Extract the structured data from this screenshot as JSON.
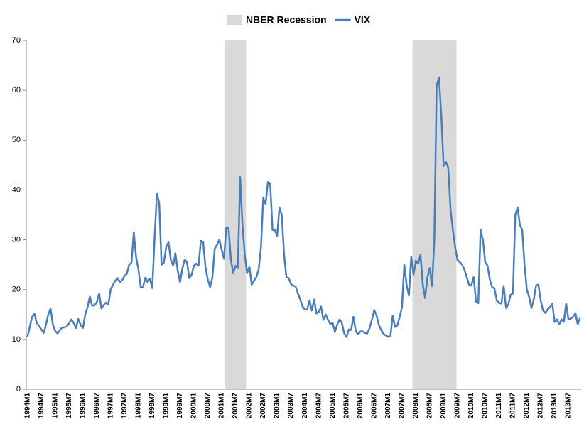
{
  "chart_data": {
    "type": "line",
    "categories": [
      "1994M1",
      null,
      null,
      null,
      null,
      null,
      "1994M7",
      null,
      null,
      null,
      null,
      null,
      "1995M1",
      null,
      null,
      null,
      null,
      null,
      "1995M7",
      null,
      null,
      null,
      null,
      null,
      "1996M1",
      null,
      null,
      null,
      null,
      null,
      "1996M7",
      null,
      null,
      null,
      null,
      null,
      "1997M1",
      null,
      null,
      null,
      null,
      null,
      "1997M7",
      null,
      null,
      null,
      null,
      null,
      "1998M1",
      null,
      null,
      null,
      null,
      null,
      "1998M7",
      null,
      null,
      null,
      null,
      null,
      "1999M1",
      null,
      null,
      null,
      null,
      null,
      "1999M7",
      null,
      null,
      null,
      null,
      null,
      "2000M1",
      null,
      null,
      null,
      null,
      null,
      "2000M7",
      null,
      null,
      null,
      null,
      null,
      "2001M1",
      null,
      null,
      null,
      null,
      null,
      "2001M7",
      null,
      null,
      null,
      null,
      null,
      "2002M1",
      null,
      null,
      null,
      null,
      null,
      "2002M7",
      null,
      null,
      null,
      null,
      null,
      "2003M1",
      null,
      null,
      null,
      null,
      null,
      "2003M7",
      null,
      null,
      null,
      null,
      null,
      "2004M1",
      null,
      null,
      null,
      null,
      null,
      "2004M7",
      null,
      null,
      null,
      null,
      null,
      "2005M1",
      null,
      null,
      null,
      null,
      null,
      "2005M7",
      null,
      null,
      null,
      null,
      null,
      "2006M1",
      null,
      null,
      null,
      null,
      null,
      "2006M7",
      null,
      null,
      null,
      null,
      null,
      "2007M1",
      null,
      null,
      null,
      null,
      null,
      "2007M7",
      null,
      null,
      null,
      null,
      null,
      "2008M1",
      null,
      null,
      null,
      null,
      null,
      "2008M7",
      null,
      null,
      null,
      null,
      null,
      "2009M1",
      null,
      null,
      null,
      null,
      null,
      "2009M7",
      null,
      null,
      null,
      null,
      null,
      "2010M1",
      null,
      null,
      null,
      null,
      null,
      "2010M7",
      null,
      null,
      null,
      null,
      null,
      "2011M1",
      null,
      null,
      null,
      null,
      null,
      "2011M7",
      null,
      null,
      null,
      null,
      null,
      "2012M1",
      null,
      null,
      null,
      null,
      null,
      "2012M7",
      null,
      null,
      null,
      null,
      null,
      "2013M1",
      null,
      null,
      null,
      null,
      null,
      "2013M7",
      null,
      null,
      null,
      null,
      null
    ],
    "series": [
      {
        "name": "NBER Recession",
        "type": "bar",
        "color": "#d9d9d9",
        "values": [
          null,
          null,
          null,
          null,
          null,
          null,
          null,
          null,
          null,
          null,
          null,
          null,
          null,
          null,
          null,
          null,
          null,
          null,
          null,
          null,
          null,
          null,
          null,
          null,
          null,
          null,
          null,
          null,
          null,
          null,
          null,
          null,
          null,
          null,
          null,
          null,
          null,
          null,
          null,
          null,
          null,
          null,
          null,
          null,
          null,
          null,
          null,
          null,
          null,
          null,
          null,
          null,
          null,
          null,
          null,
          null,
          null,
          null,
          null,
          null,
          null,
          null,
          null,
          null,
          null,
          null,
          null,
          null,
          null,
          null,
          null,
          null,
          null,
          null,
          null,
          null,
          null,
          null,
          null,
          null,
          null,
          null,
          null,
          null,
          null,
          null,
          70,
          70,
          70,
          70,
          70,
          70,
          70,
          70,
          70,
          null,
          null,
          null,
          null,
          null,
          null,
          null,
          null,
          null,
          null,
          null,
          null,
          null,
          null,
          null,
          null,
          null,
          null,
          null,
          null,
          null,
          null,
          null,
          null,
          null,
          null,
          null,
          null,
          null,
          null,
          null,
          null,
          null,
          null,
          null,
          null,
          null,
          null,
          null,
          null,
          null,
          null,
          null,
          null,
          null,
          null,
          null,
          null,
          null,
          null,
          null,
          null,
          null,
          null,
          null,
          null,
          null,
          null,
          null,
          null,
          null,
          null,
          null,
          null,
          null,
          null,
          null,
          null,
          null,
          null,
          null,
          null,
          70,
          70,
          70,
          70,
          70,
          70,
          70,
          70,
          70,
          70,
          70,
          70,
          70,
          70,
          70,
          70,
          70,
          70,
          70,
          null,
          null,
          null,
          null,
          null,
          null,
          null,
          null,
          null,
          null,
          null,
          null,
          null,
          null,
          null,
          null,
          null,
          null,
          null,
          null,
          null,
          null,
          null,
          null,
          null,
          null,
          null,
          null,
          null,
          null,
          null,
          null,
          null,
          null,
          null,
          null,
          null,
          null,
          null,
          null,
          null,
          null,
          null,
          null,
          null,
          null,
          null,
          null,
          null,
          null,
          null,
          null,
          null,
          null
        ]
      },
      {
        "name": "VIX",
        "type": "line",
        "color": "#4a7ebb",
        "values": [
          10.5,
          12.5,
          14.5,
          15.2,
          13.3,
          12.7,
          12.0,
          11.3,
          12.9,
          15.0,
          16.2,
          13.0,
          11.7,
          11.2,
          11.8,
          12.4,
          12.4,
          12.6,
          13.2,
          14.0,
          13.3,
          12.3,
          14.1,
          12.9,
          12.3,
          15.0,
          16.5,
          18.6,
          16.8,
          16.8,
          17.5,
          19.2,
          16.2,
          16.9,
          17.4,
          17.1,
          20.0,
          21.0,
          21.8,
          22.3,
          21.5,
          21.9,
          22.8,
          23.2,
          25.0,
          25.4,
          31.5,
          26.5,
          24.0,
          20.5,
          20.6,
          22.4,
          21.5,
          22.2,
          20.3,
          30.5,
          39.2,
          37.4,
          25.0,
          25.4,
          28.5,
          29.5,
          26.0,
          24.8,
          27.3,
          23.8,
          21.5,
          24.2,
          26.0,
          25.5,
          22.3,
          23.0,
          24.8,
          25.2,
          24.8,
          29.8,
          29.5,
          24.5,
          22.0,
          20.5,
          22.5,
          28.2,
          29.0,
          30.0,
          28.0,
          26.2,
          32.4,
          32.3,
          26.0,
          23.3,
          24.8,
          24.3,
          42.6,
          33.0,
          27.0,
          23.3,
          24.6,
          21.0,
          21.8,
          22.5,
          24.0,
          28.5,
          38.4,
          37.2,
          41.6,
          41.3,
          32.0,
          31.9,
          30.8,
          36.5,
          35.0,
          27.0,
          22.5,
          22.3,
          21.1,
          20.8,
          20.6,
          19.2,
          18.0,
          16.6,
          16.0,
          16.0,
          17.8,
          15.8,
          18.0,
          15.2,
          15.5,
          16.6,
          13.9,
          15.0,
          13.9,
          13.1,
          13.3,
          11.5,
          13.0,
          14.0,
          13.3,
          11.2,
          10.5,
          12.0,
          11.9,
          14.5,
          11.7,
          11.0,
          11.6,
          11.6,
          11.3,
          11.2,
          12.3,
          14.0,
          15.9,
          14.8,
          12.9,
          11.9,
          11.1,
          10.8,
          10.5,
          10.7,
          14.8,
          12.5,
          12.8,
          14.5,
          16.5,
          25.0,
          21.0,
          18.8,
          26.6,
          23.0,
          25.8,
          25.2,
          27.0,
          21.0,
          18.3,
          22.5,
          24.3,
          20.7,
          30.0,
          61.0,
          62.6,
          55.0,
          44.8,
          45.6,
          44.5,
          36.0,
          32.0,
          28.5,
          26.0,
          25.5,
          25.0,
          24.0,
          22.5,
          21.0,
          20.8,
          22.5,
          17.6,
          17.3,
          32.0,
          30.0,
          25.5,
          24.8,
          22.0,
          20.5,
          20.2,
          17.8,
          17.3,
          17.2,
          20.7,
          16.3,
          17.0,
          19.0,
          19.2,
          35.0,
          36.5,
          33.0,
          32.0,
          25.0,
          20.0,
          18.5,
          16.3,
          18.0,
          20.8,
          21.0,
          17.8,
          15.8,
          15.3,
          16.0,
          16.5,
          17.2,
          13.5,
          14.0,
          13.0,
          14.0,
          13.5,
          17.2,
          14.0,
          14.2,
          14.5,
          15.3,
          13.0,
          14.3
        ]
      }
    ],
    "ylim": [
      0,
      70
    ],
    "yticks": [
      0,
      10,
      20,
      30,
      40,
      50,
      60,
      70
    ],
    "grid": false,
    "legend": "top"
  }
}
